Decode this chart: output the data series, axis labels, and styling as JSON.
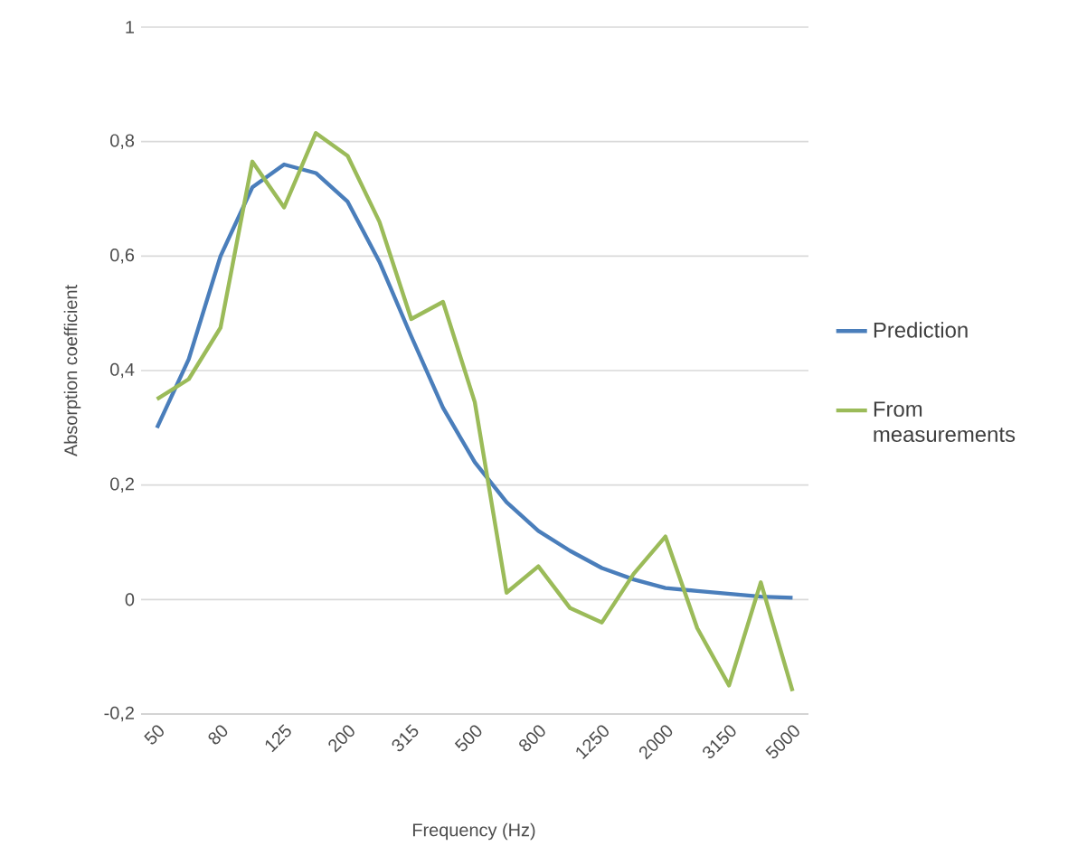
{
  "chart_data": {
    "type": "line",
    "xlabel": "Frequency (Hz)",
    "ylabel": "Absorption coefficient",
    "categories": [
      "50",
      null,
      "80",
      null,
      "125",
      null,
      "200",
      null,
      "315",
      null,
      "500",
      null,
      "800",
      null,
      "1250",
      null,
      "2000",
      null,
      "3150",
      null,
      "5000"
    ],
    "series": [
      {
        "name": "Prediction",
        "color": "#4a7ebb",
        "values": [
          0.3,
          0.42,
          0.6,
          0.72,
          0.76,
          0.745,
          0.695,
          0.59,
          0.46,
          0.335,
          0.24,
          0.17,
          0.12,
          0.085,
          0.055,
          0.035,
          0.02,
          0.015,
          0.01,
          0.005,
          0.003
        ]
      },
      {
        "name": "From measurements",
        "color": "#9bbb59",
        "values": [
          0.35,
          0.385,
          0.475,
          0.765,
          0.685,
          0.815,
          0.775,
          0.66,
          0.49,
          0.52,
          0.345,
          0.012,
          0.058,
          -0.015,
          -0.04,
          0.045,
          0.11,
          -0.05,
          -0.15,
          0.03,
          -0.16
        ]
      }
    ],
    "ylim": [
      -0.2,
      1
    ],
    "yticks": [
      {
        "value": -0.2,
        "label": "-0,2"
      },
      {
        "value": 0,
        "label": "0"
      },
      {
        "value": 0.2,
        "label": "0,2"
      },
      {
        "value": 0.4,
        "label": "0,4"
      },
      {
        "value": 0.6,
        "label": "0,6"
      },
      {
        "value": 0.8,
        "label": "0,8"
      },
      {
        "value": 1,
        "label": "1"
      }
    ],
    "grid": "y",
    "legend": "right",
    "marker": "none",
    "line_style": "solid"
  }
}
